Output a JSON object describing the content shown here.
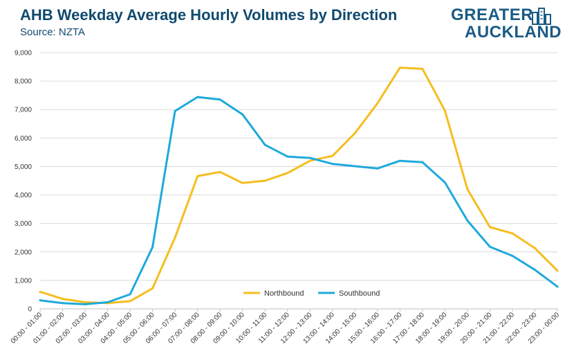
{
  "header": {
    "title": "AHB Weekday Average Hourly Volumes by Direction",
    "subtitle": "Source: NZTA"
  },
  "logo": {
    "line1": "GREATER",
    "line2": "AUCKLAND",
    "icon": "city-buildings-icon"
  },
  "colors": {
    "northbound": "#f5be1e",
    "southbound": "#1ea9dc",
    "gridline": "#d9d9d9",
    "title": "#0f4a6e"
  },
  "chart_data": {
    "type": "line",
    "title": "AHB Weekday Average Hourly Volumes by Direction",
    "subtitle": "Source: NZTA",
    "xlabel": "",
    "ylabel": "",
    "ylim": [
      0,
      9000
    ],
    "yticks": [
      0,
      1000,
      2000,
      3000,
      4000,
      5000,
      6000,
      7000,
      8000,
      9000
    ],
    "ytick_labels": [
      "0",
      "1,000",
      "2,000",
      "3,000",
      "4,000",
      "5,000",
      "6,000",
      "7,000",
      "8,000",
      "9,000"
    ],
    "grid": true,
    "legend_position": "bottom-center",
    "categories": [
      "00:00 - 01:00",
      "01:00 - 02:00",
      "02:00 - 03:00",
      "03:00 - 04:00",
      "04:00 - 05:00",
      "05:00 - 06:00",
      "06:00 - 07:00",
      "07:00 - 08:00",
      "08:00 - 09:00",
      "09:00 - 10:00",
      "10:00 - 11:00",
      "11:00 - 12:00",
      "12:00 - 13:00",
      "13:00 - 14:00",
      "14:00 - 15:00",
      "15:00 - 16:00",
      "16:00 - 17:00",
      "17:00 - 18:00",
      "18:00 - 19:00",
      "19:00 - 20:00",
      "20:00 - 21:00",
      "21:00 - 22:00",
      "22:00 - 23:00",
      "23:00 - 00:00"
    ],
    "series": [
      {
        "name": "Northbound",
        "color": "#f5be1e",
        "values": [
          600,
          350,
          230,
          200,
          270,
          720,
          2500,
          4660,
          4810,
          4420,
          4500,
          4770,
          5200,
          5370,
          6170,
          7220,
          8470,
          8430,
          6960,
          4200,
          2870,
          2650,
          2130,
          1340
        ]
      },
      {
        "name": "Southbound",
        "color": "#1ea9dc",
        "values": [
          300,
          200,
          160,
          230,
          510,
          2170,
          6950,
          7440,
          7350,
          6830,
          5760,
          5350,
          5300,
          5090,
          5010,
          4930,
          5200,
          5150,
          4440,
          3100,
          2180,
          1860,
          1370,
          780
        ]
      }
    ]
  }
}
